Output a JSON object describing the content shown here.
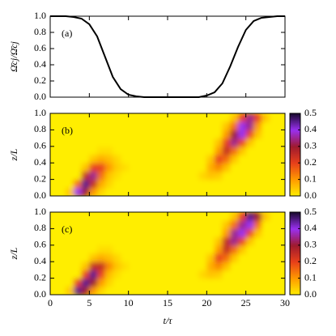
{
  "chart_data": [
    {
      "type": "line",
      "annotation": "(a)",
      "ylabel": "Ω̄cj/Ω̄cj",
      "color": "#000000",
      "x": [
        0,
        1,
        2,
        3,
        4,
        5,
        6,
        7,
        8,
        9,
        10,
        11,
        12,
        13,
        14,
        15,
        16,
        17,
        18,
        19,
        20,
        21,
        22,
        23,
        24,
        25,
        26,
        27,
        28,
        29,
        30
      ],
      "values": [
        1,
        1,
        1,
        0.99,
        0.97,
        0.9,
        0.75,
        0.5,
        0.25,
        0.1,
        0.03,
        0.01,
        0,
        0,
        0,
        0,
        0,
        0,
        0,
        0,
        0.02,
        0.06,
        0.17,
        0.38,
        0.62,
        0.83,
        0.94,
        0.98,
        0.99,
        1,
        1
      ],
      "xlim": [
        0,
        30
      ],
      "xticks": [
        0,
        5,
        10,
        15,
        20,
        25,
        30
      ],
      "ylim": [
        0,
        1
      ],
      "yticks": [
        {
          "value": 0,
          "label": "0.0"
        },
        {
          "value": 0.2,
          "label": "0.2"
        },
        {
          "value": 0.4,
          "label": "0.4"
        },
        {
          "value": 0.6,
          "label": "0.6"
        },
        {
          "value": 0.8,
          "label": "0.8"
        },
        {
          "value": 1,
          "label": "1.0"
        }
      ]
    },
    {
      "type": "heatmap",
      "annotation": "(b)",
      "ylabel": "z/L",
      "xlim": [
        0,
        30
      ],
      "xticks": [
        0,
        5,
        10,
        15,
        20,
        25,
        30
      ],
      "ylim": [
        0,
        1
      ],
      "yticks": [
        {
          "value": 0,
          "label": "0.0"
        },
        {
          "value": 0.2,
          "label": "0.2"
        },
        {
          "value": 0.4,
          "label": "0.4"
        },
        {
          "value": 0.6,
          "label": "0.6"
        },
        {
          "value": 0.8,
          "label": "0.8"
        },
        {
          "value": 1,
          "label": "1.0"
        }
      ],
      "clim": [
        0,
        0.5
      ],
      "cticks": [
        {
          "value": 0,
          "label": "0.0"
        },
        {
          "value": 0.1,
          "label": "0.1"
        },
        {
          "value": 0.2,
          "label": "0.2"
        },
        {
          "value": 0.3,
          "label": "0.3"
        },
        {
          "value": 0.4,
          "label": "0.4"
        },
        {
          "value": 0.5,
          "label": "0.5"
        }
      ],
      "colormap": [
        "#ffee00",
        "#ff9a00",
        "#e8401a",
        "#9e1a2e",
        "#9a30f0",
        "#1a0a30"
      ],
      "values": [
        [
          0,
          0,
          0.05,
          0.4,
          0.3,
          0.1,
          0.03,
          0,
          0,
          0,
          0,
          0,
          0,
          0,
          0,
          0,
          0,
          0,
          0,
          0,
          0,
          0,
          0,
          0,
          0,
          0,
          0,
          0,
          0,
          0
        ],
        [
          0,
          0,
          0,
          0.15,
          0.45,
          0.25,
          0.08,
          0.03,
          0,
          0,
          0,
          0,
          0,
          0,
          0,
          0,
          0,
          0,
          0,
          0,
          0,
          0,
          0,
          0,
          0,
          0,
          0,
          0,
          0,
          0
        ],
        [
          0,
          0,
          0,
          0,
          0.25,
          0.35,
          0.15,
          0.05,
          0.02,
          0,
          0,
          0,
          0,
          0,
          0,
          0,
          0,
          0,
          0,
          0.03,
          0.05,
          0.04,
          0,
          0,
          0,
          0,
          0,
          0,
          0,
          0
        ],
        [
          0,
          0,
          0,
          0,
          0.05,
          0.2,
          0.2,
          0.1,
          0.04,
          0.02,
          0,
          0,
          0,
          0,
          0,
          0,
          0,
          0,
          0,
          0,
          0.08,
          0.12,
          0.06,
          0,
          0,
          0,
          0,
          0,
          0,
          0
        ],
        [
          0,
          0,
          0,
          0,
          0,
          0.05,
          0.08,
          0.06,
          0.03,
          0,
          0,
          0,
          0,
          0,
          0,
          0,
          0,
          0,
          0,
          0,
          0.05,
          0.2,
          0.15,
          0.05,
          0,
          0,
          0,
          0,
          0,
          0
        ],
        [
          0,
          0,
          0,
          0,
          0,
          0,
          0.02,
          0.02,
          0,
          0,
          0,
          0,
          0,
          0,
          0,
          0,
          0,
          0,
          0,
          0,
          0,
          0.1,
          0.25,
          0.15,
          0.05,
          0,
          0,
          0,
          0,
          0
        ],
        [
          0,
          0,
          0,
          0,
          0,
          0,
          0,
          0,
          0,
          0,
          0,
          0,
          0,
          0,
          0,
          0,
          0,
          0,
          0,
          0,
          0,
          0.05,
          0.2,
          0.35,
          0.2,
          0.05,
          0,
          0,
          0,
          0
        ],
        [
          0,
          0,
          0,
          0,
          0,
          0,
          0,
          0,
          0,
          0,
          0,
          0,
          0,
          0,
          0,
          0,
          0,
          0,
          0,
          0,
          0,
          0,
          0.1,
          0.3,
          0.4,
          0.2,
          0.05,
          0,
          0,
          0
        ],
        [
          0,
          0,
          0,
          0,
          0,
          0,
          0,
          0,
          0,
          0,
          0,
          0,
          0,
          0,
          0,
          0,
          0,
          0,
          0,
          0,
          0,
          0,
          0.05,
          0.15,
          0.4,
          0.35,
          0.1,
          0,
          0,
          0
        ],
        [
          0,
          0,
          0,
          0,
          0,
          0,
          0,
          0,
          0,
          0,
          0,
          0,
          0,
          0,
          0,
          0,
          0,
          0,
          0,
          0,
          0,
          0,
          0,
          0.05,
          0.2,
          0.35,
          0.2,
          0.05,
          0,
          0
        ]
      ]
    },
    {
      "type": "heatmap",
      "annotation": "(c)",
      "ylabel": "z/L",
      "xlabel": "t/τ",
      "xlim": [
        0,
        30
      ],
      "xticks": [
        0,
        5,
        10,
        15,
        20,
        25,
        30
      ],
      "ylim": [
        0,
        1
      ],
      "yticks": [
        {
          "value": 0,
          "label": "0.0"
        },
        {
          "value": 0.2,
          "label": "0.2"
        },
        {
          "value": 0.4,
          "label": "0.4"
        },
        {
          "value": 0.6,
          "label": "0.6"
        },
        {
          "value": 0.8,
          "label": "0.8"
        },
        {
          "value": 1,
          "label": "1.0"
        }
      ],
      "clim": [
        0,
        0.5
      ],
      "cticks": [
        {
          "value": 0,
          "label": "0.0"
        },
        {
          "value": 0.1,
          "label": "0.1"
        },
        {
          "value": 0.2,
          "label": "0.2"
        },
        {
          "value": 0.3,
          "label": "0.3"
        },
        {
          "value": 0.4,
          "label": "0.4"
        },
        {
          "value": 0.5,
          "label": "0.5"
        }
      ],
      "colormap": [
        "#ffee00",
        "#ff9a00",
        "#e8401a",
        "#9e1a2e",
        "#9a30f0",
        "#1a0a30"
      ],
      "values": [
        [
          0,
          0,
          0.05,
          0.45,
          0.3,
          0.1,
          0.03,
          0,
          0,
          0,
          0,
          0,
          0,
          0,
          0,
          0,
          0,
          0,
          0,
          0,
          0,
          0,
          0,
          0,
          0,
          0,
          0,
          0,
          0,
          0
        ],
        [
          0,
          0,
          0,
          0.2,
          0.45,
          0.3,
          0.1,
          0.03,
          0,
          0,
          0,
          0,
          0,
          0,
          0,
          0,
          0,
          0,
          0,
          0,
          0,
          0,
          0,
          0,
          0,
          0,
          0,
          0,
          0,
          0
        ],
        [
          0,
          0,
          0,
          0,
          0.2,
          0.45,
          0.2,
          0.06,
          0.02,
          0,
          0,
          0,
          0,
          0,
          0,
          0,
          0,
          0,
          0,
          0.03,
          0.05,
          0.04,
          0,
          0,
          0,
          0,
          0,
          0,
          0,
          0
        ],
        [
          0,
          0,
          0,
          0,
          0.05,
          0.25,
          0.25,
          0.12,
          0.05,
          0.02,
          0,
          0,
          0,
          0,
          0,
          0,
          0,
          0,
          0,
          0,
          0.08,
          0.12,
          0.06,
          0,
          0,
          0,
          0,
          0,
          0,
          0
        ],
        [
          0,
          0,
          0,
          0,
          0,
          0.05,
          0.08,
          0.06,
          0.03,
          0,
          0,
          0,
          0,
          0,
          0,
          0,
          0,
          0,
          0,
          0,
          0.05,
          0.2,
          0.15,
          0.05,
          0,
          0,
          0,
          0,
          0,
          0
        ],
        [
          0,
          0,
          0,
          0,
          0,
          0,
          0.02,
          0.02,
          0,
          0,
          0,
          0,
          0,
          0,
          0,
          0,
          0,
          0,
          0,
          0,
          0,
          0.1,
          0.25,
          0.15,
          0.05,
          0,
          0,
          0,
          0,
          0
        ],
        [
          0,
          0,
          0,
          0,
          0,
          0,
          0,
          0,
          0,
          0,
          0,
          0,
          0,
          0,
          0,
          0,
          0,
          0,
          0,
          0,
          0,
          0.05,
          0.25,
          0.35,
          0.2,
          0.05,
          0,
          0,
          0,
          0
        ],
        [
          0,
          0,
          0,
          0,
          0,
          0,
          0,
          0,
          0,
          0,
          0,
          0,
          0,
          0,
          0,
          0,
          0,
          0,
          0,
          0,
          0,
          0,
          0.1,
          0.35,
          0.4,
          0.2,
          0.05,
          0,
          0,
          0
        ],
        [
          0,
          0,
          0,
          0,
          0,
          0,
          0,
          0,
          0,
          0,
          0,
          0,
          0,
          0,
          0,
          0,
          0,
          0,
          0,
          0,
          0,
          0,
          0.05,
          0.15,
          0.35,
          0.4,
          0.15,
          0,
          0,
          0
        ],
        [
          0,
          0,
          0,
          0,
          0,
          0,
          0,
          0,
          0,
          0,
          0,
          0,
          0,
          0,
          0,
          0,
          0,
          0,
          0,
          0,
          0,
          0,
          0,
          0.05,
          0.2,
          0.45,
          0.3,
          0.05,
          0,
          0
        ]
      ]
    }
  ]
}
